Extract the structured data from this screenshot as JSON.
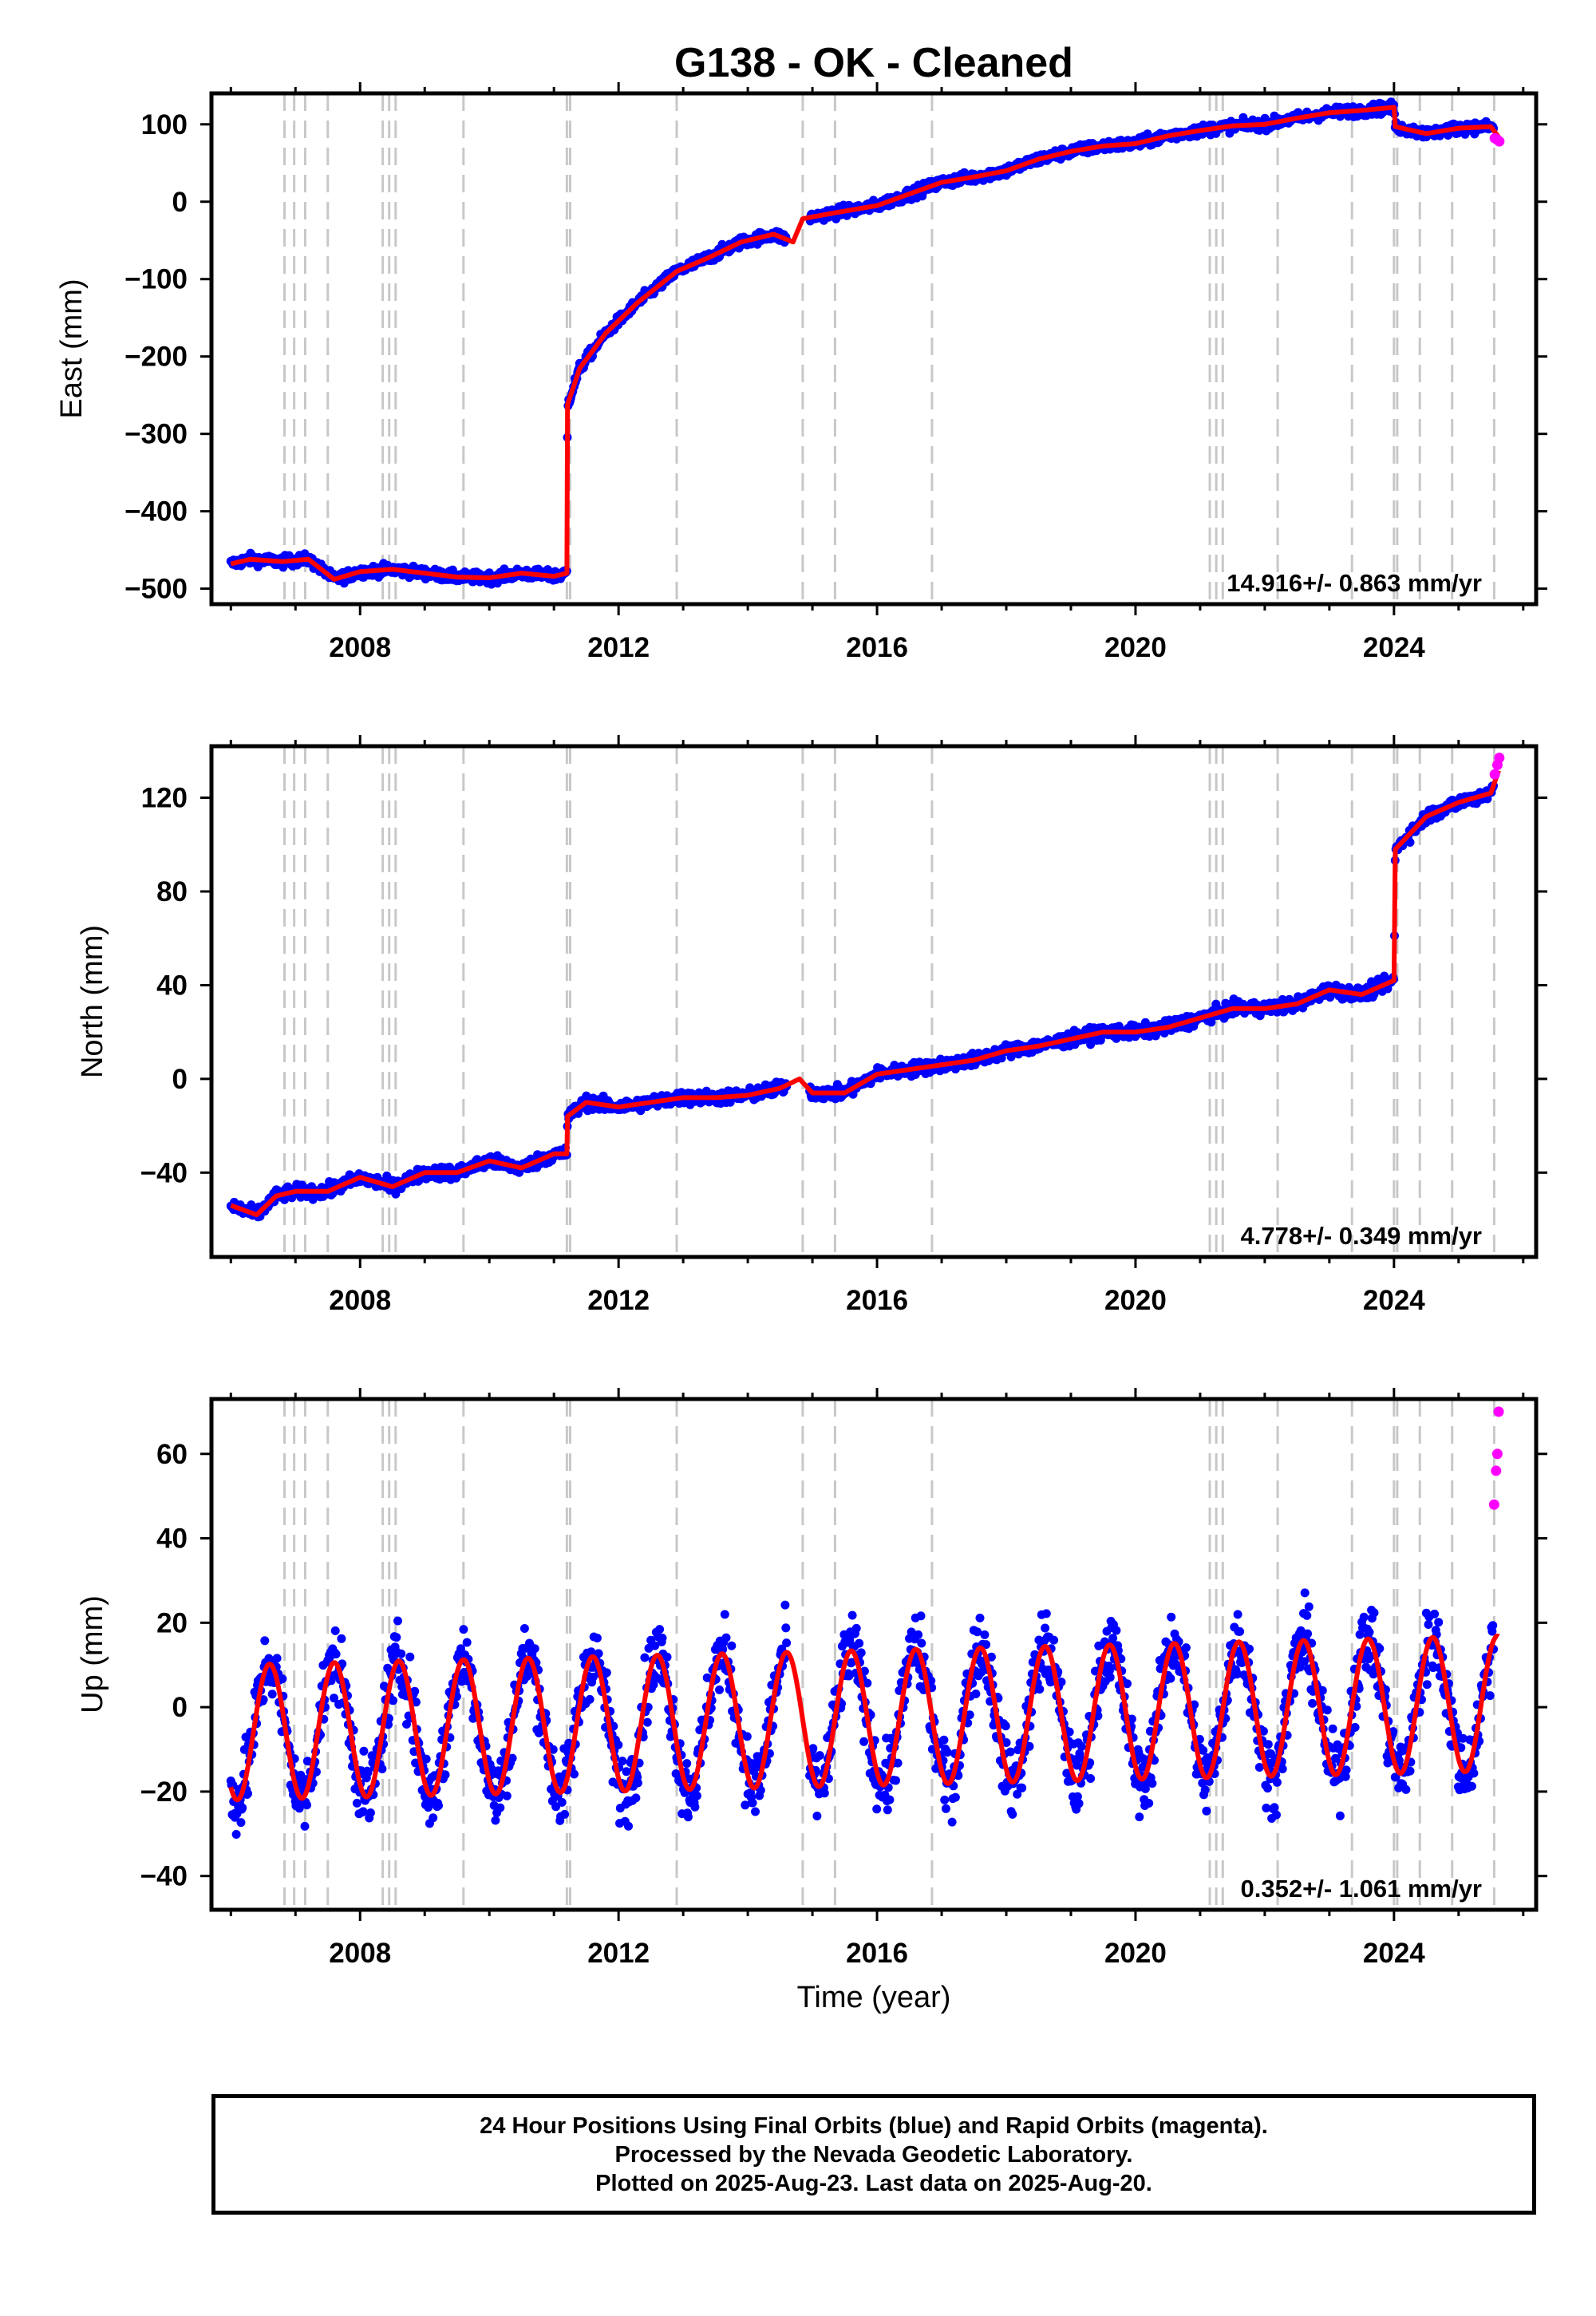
{
  "title": "G138  - OK - Cleaned",
  "xlabel": "Time (year)",
  "caption_lines": [
    "24 Hour Positions Using Final Orbits (blue) and Rapid Orbits (magenta).",
    "Processed by the Nevada Geodetic Laboratory.",
    "Plotted on 2025-Aug-23. Last data on 2025-Aug-20."
  ],
  "colors": {
    "final": "#0000ff",
    "rapid": "#ff00ff",
    "model": "#ff0000",
    "steps": "#c8c8c8"
  },
  "chart_data": [
    {
      "type": "scatter",
      "ylabel": "East (mm)",
      "rate_label": "14.916+/- 0.863 mm/yr",
      "xlim": [
        2005.7,
        2026.2
      ],
      "ylim": [
        -520,
        140
      ],
      "yticks": [
        100,
        0,
        -100,
        -200,
        -300,
        -400,
        -500
      ],
      "yticklabels": [
        "100",
        "0",
        "−100",
        "−200",
        "−300",
        "−400",
        "−500"
      ],
      "xticks": [
        2008,
        2012,
        2016,
        2020,
        2024
      ],
      "xticklabels": [
        "2008",
        "2012",
        "2016",
        "2020",
        "2024"
      ],
      "step_epochs": [
        2006.83,
        2006.98,
        2007.15,
        2007.5,
        2008.35,
        2008.45,
        2008.55,
        2009.6,
        2011.2,
        2011.25,
        2012.9,
        2014.85,
        2015.35,
        2016.85,
        2021.15,
        2021.25,
        2021.35,
        2022.2,
        2023.35,
        2024.0,
        2024.05,
        2024.4,
        2024.9,
        2025.55
      ],
      "model": {
        "x": [
          2006.0,
          2006.3,
          2006.8,
          2007.2,
          2007.6,
          2008.0,
          2008.5,
          2009.0,
          2009.5,
          2010.0,
          2010.5,
          2011.0,
          2011.2,
          2011.21,
          2011.4,
          2011.8,
          2012.3,
          2012.9,
          2013.4,
          2013.9,
          2014.4,
          2014.7,
          2014.85,
          2015.3,
          2016.0,
          2016.5,
          2017.0,
          2017.5,
          2018.0,
          2018.5,
          2019.0,
          2019.5,
          2020.0,
          2020.5,
          2021.0,
          2021.5,
          2022.0,
          2022.5,
          2023.0,
          2023.5,
          2024.0,
          2024.02,
          2024.5,
          2025.0,
          2025.5,
          2025.65
        ],
        "y": [
          -468,
          -462,
          -465,
          -462,
          -488,
          -478,
          -475,
          -480,
          -485,
          -486,
          -480,
          -484,
          -480,
          -262,
          -215,
          -170,
          -130,
          -90,
          -72,
          -52,
          -42,
          -52,
          -22,
          -15,
          -5,
          10,
          25,
          32,
          40,
          55,
          65,
          72,
          75,
          85,
          92,
          98,
          100,
          108,
          115,
          118,
          122,
          97,
          88,
          95,
          97,
          80
        ]
      },
      "rapid_tail": {
        "x": [
          2025.56,
          2025.6,
          2025.63
        ],
        "y": [
          82,
          80,
          78
        ]
      },
      "scatter_sigma": 5
    },
    {
      "type": "scatter",
      "ylabel": "North (mm)",
      "rate_label": "4.778+/- 0.349 mm/yr",
      "xlim": [
        2005.7,
        2026.2
      ],
      "ylim": [
        -76,
        142
      ],
      "yticks": [
        120,
        80,
        40,
        0,
        -40
      ],
      "yticklabels": [
        "120",
        "80",
        "40",
        "0",
        "−40"
      ],
      "xticks": [
        2008,
        2012,
        2016,
        2020,
        2024
      ],
      "xticklabels": [
        "2008",
        "2012",
        "2016",
        "2020",
        "2024"
      ],
      "step_epochs": [
        2006.83,
        2006.98,
        2007.15,
        2007.5,
        2008.35,
        2008.45,
        2008.55,
        2009.6,
        2011.2,
        2011.25,
        2012.9,
        2014.85,
        2015.35,
        2016.85,
        2021.15,
        2021.25,
        2021.35,
        2022.2,
        2023.35,
        2024.0,
        2024.05,
        2024.4,
        2024.9,
        2025.55
      ],
      "model": {
        "x": [
          2006.0,
          2006.4,
          2006.7,
          2007.0,
          2007.5,
          2008.0,
          2008.5,
          2009.0,
          2009.5,
          2010.0,
          2010.5,
          2011.0,
          2011.2,
          2011.21,
          2011.5,
          2012.0,
          2012.5,
          2013.0,
          2013.5,
          2014.0,
          2014.5,
          2014.8,
          2015.0,
          2015.5,
          2016.0,
          2016.5,
          2017.0,
          2017.5,
          2018.0,
          2018.5,
          2019.0,
          2019.5,
          2020.0,
          2020.5,
          2021.0,
          2021.5,
          2022.0,
          2022.5,
          2023.0,
          2023.5,
          2024.0,
          2024.02,
          2024.5,
          2025.0,
          2025.5,
          2025.65
        ],
        "y": [
          -54,
          -58,
          -50,
          -48,
          -48,
          -42,
          -46,
          -40,
          -40,
          -35,
          -38,
          -32,
          -32,
          -16,
          -10,
          -12,
          -10,
          -8,
          -8,
          -7,
          -4,
          0,
          -6,
          -6,
          2,
          4,
          6,
          8,
          12,
          14,
          17,
          20,
          20,
          22,
          26,
          30,
          30,
          32,
          38,
          36,
          42,
          98,
          112,
          118,
          122,
          134
        ]
      },
      "rapid_tail": {
        "x": [
          2025.56,
          2025.6,
          2025.63
        ],
        "y": [
          130,
          134,
          137
        ]
      },
      "scatter_sigma": 2
    },
    {
      "type": "scatter",
      "ylabel": "Up (mm)",
      "rate_label": "0.352+/- 1.061 mm/yr",
      "xlim": [
        2005.7,
        2026.2
      ],
      "ylim": [
        -48,
        73
      ],
      "yticks": [
        60,
        40,
        20,
        0,
        -20,
        -40
      ],
      "yticklabels": [
        "60",
        "40",
        "20",
        "0",
        "−20",
        "−40"
      ],
      "xticks": [
        2008,
        2012,
        2016,
        2020,
        2024
      ],
      "xticklabels": [
        "2008",
        "2012",
        "2016",
        "2020",
        "2024"
      ],
      "step_epochs": [
        2006.83,
        2006.98,
        2007.15,
        2007.5,
        2008.35,
        2008.45,
        2008.55,
        2009.6,
        2011.2,
        2011.25,
        2012.9,
        2014.85,
        2015.35,
        2016.85,
        2021.15,
        2021.25,
        2021.35,
        2022.2,
        2023.35,
        2024.0,
        2024.05,
        2024.4,
        2024.9,
        2025.55
      ],
      "seasonal": {
        "amplitude": 16,
        "phase_peak": 0.6,
        "trend_offset": -6,
        "trend_rate": 0.35
      },
      "rapid_tail": {
        "x": [
          2025.55,
          2025.58,
          2025.6,
          2025.62
        ],
        "y": [
          48,
          56,
          60,
          70
        ]
      },
      "scatter_sigma": 6
    }
  ]
}
